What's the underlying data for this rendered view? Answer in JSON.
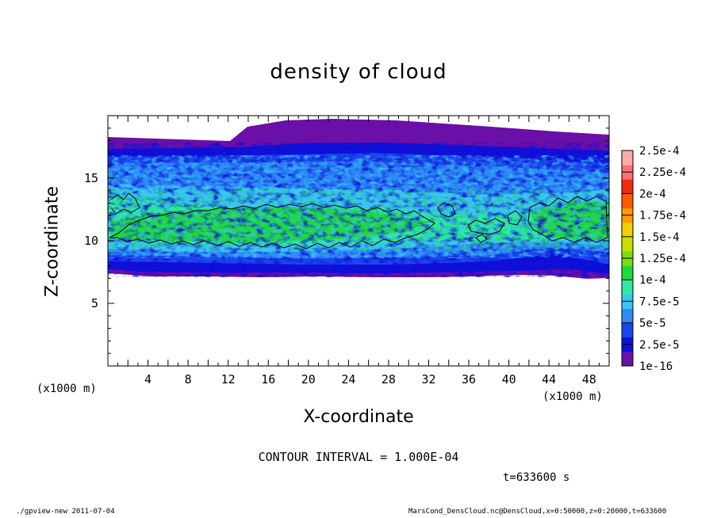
{
  "chart_data": {
    "type": "heatmap",
    "title": "density of cloud",
    "xlabel": "X-coordinate",
    "ylabel": "Z-coordinate",
    "x_unit": "(x1000 m)",
    "xlim": [
      0,
      50
    ],
    "ylim": [
      0,
      20
    ],
    "x_ticks": [
      4,
      8,
      12,
      16,
      20,
      24,
      28,
      32,
      36,
      40,
      44,
      48
    ],
    "y_ticks": [
      5,
      10,
      15
    ],
    "colorbar": {
      "labels": [
        "1e-16",
        "2.5e-5",
        "5e-5",
        "7.5e-5",
        "1e-4",
        "1.25e-4",
        "1.5e-4",
        "1.75e-4",
        "2e-4",
        "2.25e-4",
        "2.5e-4"
      ],
      "colors": [
        "#6a0fa8",
        "#1010d8",
        "#1c46ee",
        "#2d8cf5",
        "#39c6f2",
        "#2ee8a4",
        "#1fd840",
        "#7cdc10",
        "#c8e000",
        "#f0d000",
        "#ff9a00",
        "#ff5a00",
        "#f02a10",
        "#ff7070",
        "#ffaaaa"
      ]
    },
    "contour_interval": "CONTOUR INTERVAL = 1.000E-04",
    "contour_level": 0.0001,
    "cloud_layer": {
      "bottom_z": [
        7.4,
        8.1
      ],
      "top_z": [
        17.6,
        19.4
      ],
      "core_z": [
        10,
        13
      ]
    },
    "time": "t=633600 s"
  },
  "footer": {
    "left": "./gpview-new  2011-07-04",
    "right": "MarsCond_DensCloud.nc@DensCloud,x=0:50000,z=0:20000,t=633600"
  }
}
